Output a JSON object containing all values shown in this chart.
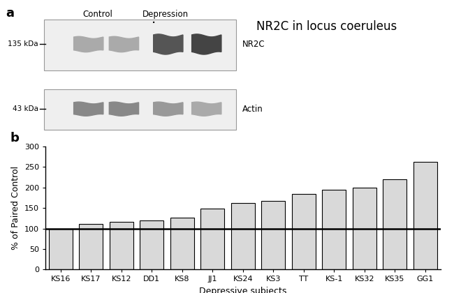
{
  "title": "NR2C in locus coeruleus",
  "panel_a_label": "a",
  "panel_b_label": "b",
  "categories": [
    "KS16",
    "KS17",
    "KS12",
    "DD1",
    "KS8",
    "JJ1",
    "KS24",
    "KS3",
    "TT",
    "KS-1",
    "KS32",
    "KS35",
    "GG1"
  ],
  "values": [
    100,
    112,
    117,
    120,
    127,
    148,
    163,
    168,
    185,
    195,
    199,
    220,
    263
  ],
  "bar_color": "#d9d9d9",
  "bar_edge_color": "#000000",
  "ylabel": "% of Paired Control",
  "xlabel": "Depressive subjects",
  "ylim": [
    0,
    300
  ],
  "yticks": [
    0,
    50,
    100,
    150,
    200,
    250,
    300
  ],
  "hline_y": 100,
  "hline_color": "#000000",
  "background_color": "#ffffff",
  "wb_label_135": "135 kDa",
  "wb_label_43": "43 kDa",
  "wb_label_nr2c": "NR2C",
  "wb_label_actin": "Actin",
  "wb_control_label": "Control",
  "wb_depression_label": "Depression"
}
